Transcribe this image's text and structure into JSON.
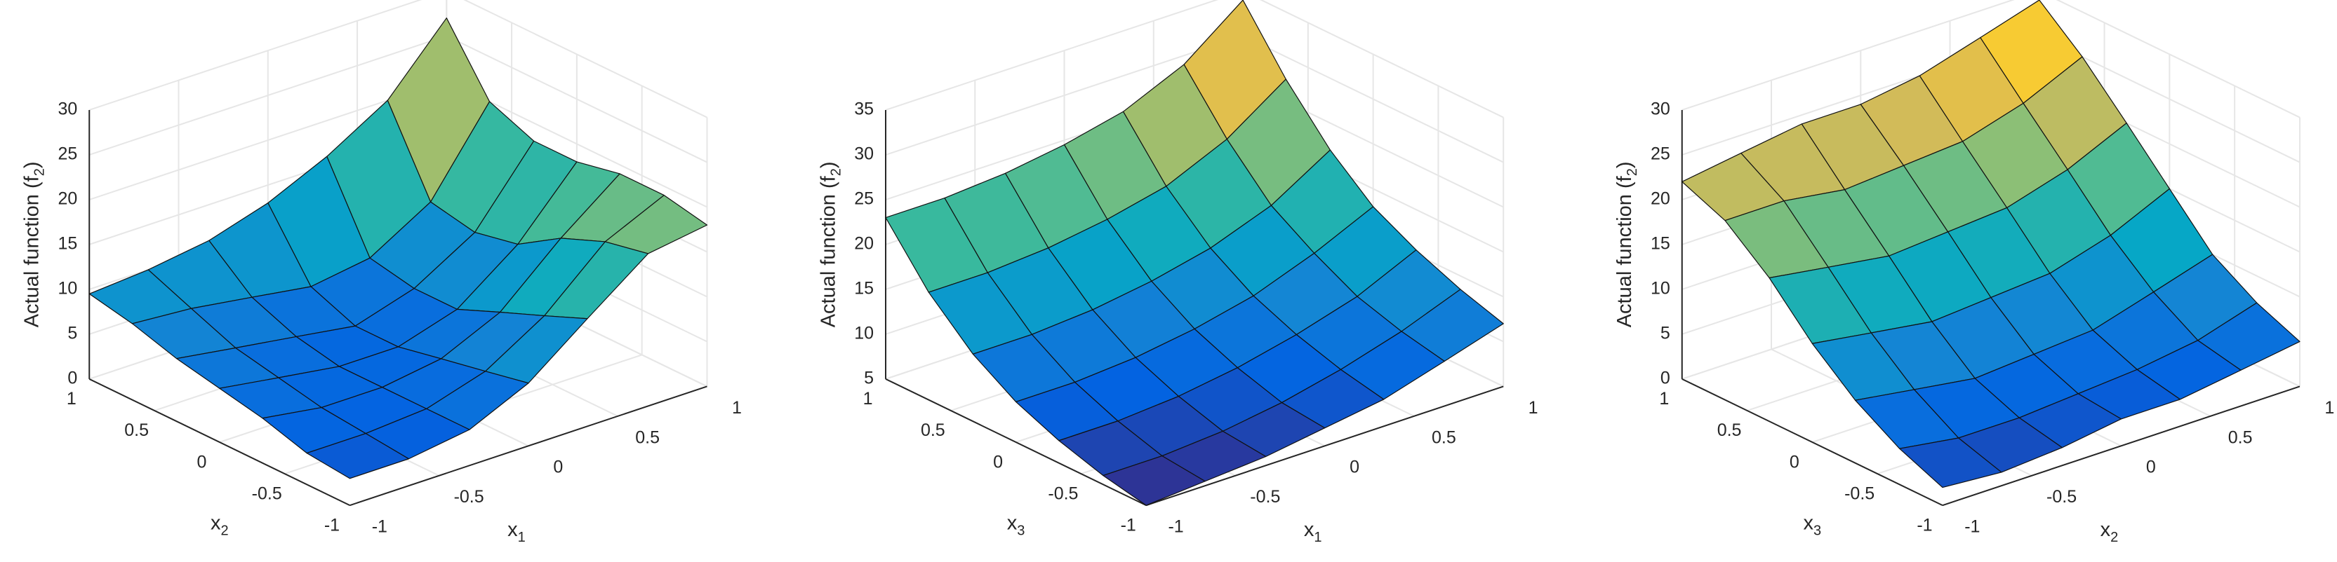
{
  "chart_data": [
    {
      "type": "surface",
      "xlabel": [
        "x",
        "1"
      ],
      "ylabel": [
        "x",
        "2"
      ],
      "zlabel": [
        "Actual function (f",
        "2",
        ")"
      ],
      "x": [
        -1,
        -0.67,
        -0.33,
        0,
        0.33,
        0.67,
        1
      ],
      "y": [
        -1,
        -0.67,
        -0.33,
        0,
        0.33,
        0.67,
        1
      ],
      "z": [
        [
          3,
          3,
          4,
          7,
          12,
          17,
          18
        ],
        [
          3.5,
          3.5,
          4,
          6,
          10,
          16,
          19
        ],
        [
          5,
          4,
          4,
          5,
          8,
          14,
          19
        ],
        [
          6,
          5,
          4,
          4,
          6,
          11,
          18
        ],
        [
          7,
          6,
          5,
          4,
          6,
          10,
          18
        ],
        [
          8.5,
          8,
          7,
          6,
          7,
          11,
          20
        ],
        [
          9.5,
          10,
          11,
          13,
          16,
          20,
          27
        ]
      ],
      "xlim": [
        -1,
        1
      ],
      "ylim": [
        -1,
        1
      ],
      "zlim": [
        0,
        30
      ],
      "xticks": [
        -1,
        -0.5,
        0,
        0.5,
        1
      ],
      "yticks": [
        -1,
        -0.5,
        0,
        0.5,
        1
      ],
      "zticks": [
        0,
        5,
        10,
        15,
        20,
        25,
        30
      ],
      "grid": true,
      "colormap": [
        "#352a87",
        "#0363e1",
        "#1485d4",
        "#06a7c6",
        "#38b99e",
        "#92bf73",
        "#d9ba56",
        "#fcce2e",
        "#f9fb0e"
      ]
    },
    {
      "type": "surface",
      "xlabel": [
        "x",
        "1"
      ],
      "ylabel": [
        "x",
        "3"
      ],
      "zlabel": [
        "Actual function (f",
        "2",
        ")"
      ],
      "x": [
        -1,
        -0.67,
        -0.33,
        0,
        0.33,
        0.67,
        1
      ],
      "y": [
        -1,
        -0.67,
        -0.33,
        0,
        0.33,
        0.67,
        1
      ],
      "z": [
        [
          5,
          5.5,
          6,
          7,
          8,
          10,
          12
        ],
        [
          6,
          6,
          6.5,
          7.5,
          9,
          11,
          13.5
        ],
        [
          7.5,
          7.5,
          8,
          9,
          10.5,
          12.5,
          15.5
        ],
        [
          9.5,
          9.5,
          10,
          11,
          12.5,
          15,
          18
        ],
        [
          12.5,
          12.5,
          13,
          14,
          15.5,
          18,
          22
        ],
        [
          17,
          17,
          17.5,
          18.5,
          20,
          23,
          27.5
        ],
        [
          23,
          23,
          23.5,
          24.5,
          26,
          29,
          34
        ]
      ],
      "xlim": [
        -1,
        1
      ],
      "ylim": [
        -1,
        1
      ],
      "zlim": [
        5,
        35
      ],
      "xticks": [
        -1,
        -0.5,
        0,
        0.5,
        1
      ],
      "yticks": [
        -1,
        -0.5,
        0,
        0.5,
        1
      ],
      "zticks": [
        5,
        10,
        15,
        20,
        25,
        30,
        35
      ],
      "grid": true,
      "colormap": [
        "#352a87",
        "#0363e1",
        "#1485d4",
        "#06a7c6",
        "#38b99e",
        "#92bf73",
        "#d9ba56",
        "#fcce2e",
        "#f9fb0e"
      ]
    },
    {
      "type": "surface",
      "xlabel": [
        "x",
        "2"
      ],
      "ylabel": [
        "x",
        "3"
      ],
      "zlabel": [
        "Actual function (f",
        "2",
        ")"
      ],
      "x": [
        -1,
        -0.67,
        -0.33,
        0,
        0.33,
        0.67,
        1
      ],
      "y": [
        -1,
        -0.67,
        -0.33,
        0,
        0.33,
        0.67,
        1
      ],
      "z": [
        [
          2,
          1.5,
          2,
          3,
          3,
          4,
          5
        ],
        [
          4,
          3,
          3,
          3.5,
          4,
          5,
          7
        ],
        [
          7,
          6,
          5,
          5.5,
          6,
          8,
          10
        ],
        [
          11,
          10,
          9,
          9.5,
          10,
          12,
          15
        ],
        [
          16,
          15,
          14,
          14.5,
          15,
          17,
          20
        ],
        [
          20,
          20,
          19,
          19.5,
          20,
          22,
          25
        ],
        [
          22,
          23,
          24,
          24,
          25,
          27,
          29
        ]
      ],
      "xlim": [
        -1,
        1
      ],
      "ylim": [
        -1,
        1
      ],
      "zlim": [
        0,
        30
      ],
      "xticks": [
        -1,
        -0.5,
        0,
        0.5,
        1
      ],
      "yticks": [
        -1,
        -0.5,
        0,
        0.5,
        1
      ],
      "zticks": [
        0,
        5,
        10,
        15,
        20,
        25,
        30
      ],
      "grid": true,
      "colormap": [
        "#352a87",
        "#0363e1",
        "#1485d4",
        "#06a7c6",
        "#38b99e",
        "#92bf73",
        "#d9ba56",
        "#fcce2e",
        "#f9fb0e"
      ]
    }
  ]
}
